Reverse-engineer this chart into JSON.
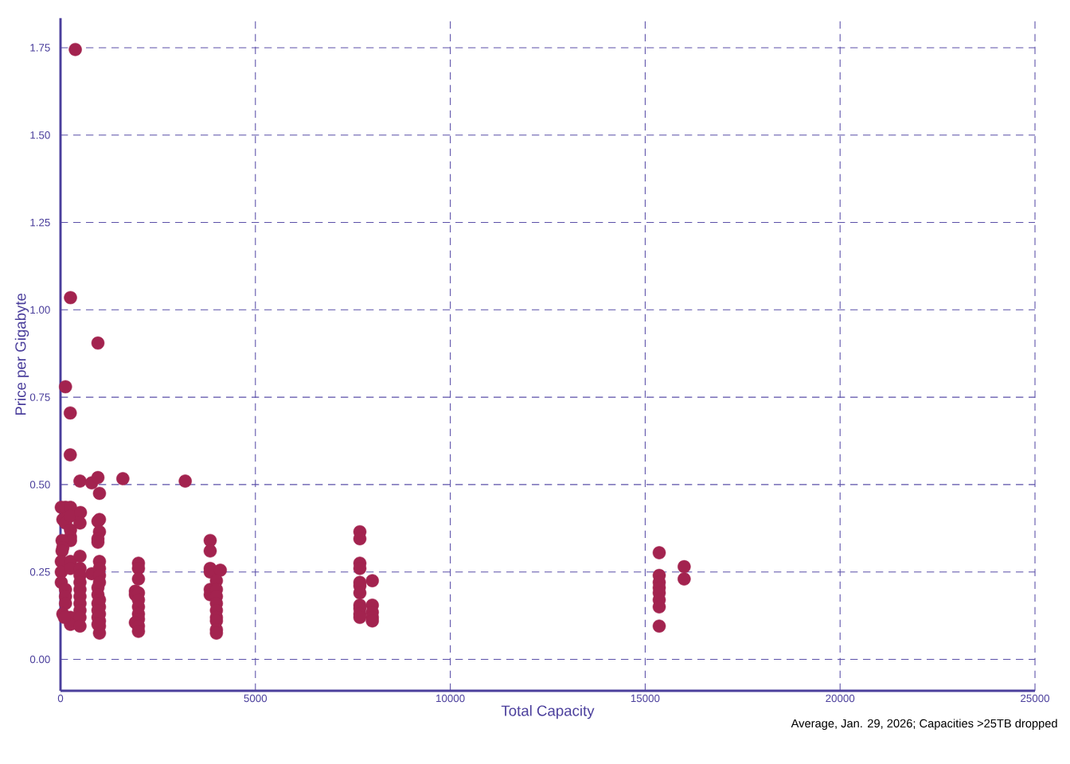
{
  "chart_data": {
    "type": "scatter",
    "xlabel": "Total Capacity",
    "ylabel": "Price per Gigabyte",
    "annotations": [
      "Average, Jan. 29, 2026; Capacities >25TB dropped"
    ],
    "color": "#a3234f",
    "grid": true,
    "xlim": [
      0,
      25000
    ],
    "ylim": [
      -0.09,
      1.835
    ],
    "xticks": [
      0,
      5000,
      10000,
      15000,
      20000,
      25000
    ],
    "yticks": [
      {
        "value": 0,
        "label": "0.00"
      },
      {
        "value": 0.25,
        "label": "0.25"
      },
      {
        "value": 0.5,
        "label": "0.50"
      },
      {
        "value": 0.75,
        "label": "0.75"
      },
      {
        "value": 1,
        "label": "1.00"
      },
      {
        "value": 1.25,
        "label": "1.25"
      },
      {
        "value": 1.5,
        "label": "1.50"
      },
      {
        "value": 1.75,
        "label": "1.75"
      }
    ],
    "x": [
      380,
      256,
      960,
      128,
      250,
      250,
      500,
      800,
      960,
      1600,
      3200,
      1000,
      1000,
      960,
      1000,
      960,
      960,
      20,
      130,
      256,
      60,
      128,
      256,
      256,
      256,
      256,
      40,
      60,
      40,
      20,
      20,
      256,
      256,
      20,
      128,
      128,
      128,
      256,
      256,
      60,
      100,
      512,
      500,
      500,
      500,
      500,
      500,
      500,
      500,
      500,
      500,
      500,
      500,
      800,
      1000,
      1000,
      1000,
      1000,
      960,
      960,
      1000,
      1000,
      1000,
      1000,
      1000,
      1000,
      960,
      960,
      960,
      960,
      2000,
      2000,
      2000,
      1920,
      1920,
      2000,
      2000,
      2000,
      2000,
      2000,
      1920,
      2000,
      2000,
      3840,
      3840,
      3840,
      3840,
      4100,
      3840,
      3840,
      4000,
      4000,
      4000,
      4000,
      4000,
      4000,
      4000,
      4000,
      4000,
      7680,
      7680,
      7680,
      7680,
      7680,
      7680,
      7680,
      7680,
      7680,
      7680,
      7680,
      8000,
      8000,
      8000,
      8000,
      8000,
      15360,
      15360,
      15360,
      15360,
      15360,
      15360,
      15360,
      15360,
      16000,
      16000
    ],
    "values": [
      1.745,
      1.035,
      0.905,
      0.78,
      0.705,
      0.585,
      0.51,
      0.505,
      0.52,
      0.517,
      0.51,
      0.475,
      0.4,
      0.395,
      0.365,
      0.345,
      0.335,
      0.435,
      0.435,
      0.435,
      0.4,
      0.39,
      0.41,
      0.37,
      0.35,
      0.34,
      0.34,
      0.32,
      0.31,
      0.28,
      0.25,
      0.28,
      0.26,
      0.22,
      0.2,
      0.18,
      0.16,
      0.12,
      0.1,
      0.13,
      0.12,
      0.42,
      0.39,
      0.295,
      0.26,
      0.24,
      0.22,
      0.2,
      0.18,
      0.16,
      0.14,
      0.12,
      0.095,
      0.245,
      0.28,
      0.26,
      0.24,
      0.22,
      0.205,
      0.185,
      0.17,
      0.15,
      0.13,
      0.11,
      0.095,
      0.075,
      0.16,
      0.14,
      0.12,
      0.1,
      0.275,
      0.26,
      0.23,
      0.195,
      0.185,
      0.19,
      0.17,
      0.15,
      0.13,
      0.115,
      0.105,
      0.095,
      0.08,
      0.34,
      0.31,
      0.26,
      0.25,
      0.255,
      0.2,
      0.185,
      0.225,
      0.2,
      0.18,
      0.16,
      0.14,
      0.12,
      0.11,
      0.085,
      0.075,
      0.365,
      0.345,
      0.275,
      0.26,
      0.22,
      0.21,
      0.19,
      0.155,
      0.145,
      0.13,
      0.12,
      0.225,
      0.155,
      0.135,
      0.12,
      0.11,
      0.305,
      0.24,
      0.22,
      0.205,
      0.19,
      0.17,
      0.15,
      0.095,
      0.265,
      0.23
    ]
  }
}
